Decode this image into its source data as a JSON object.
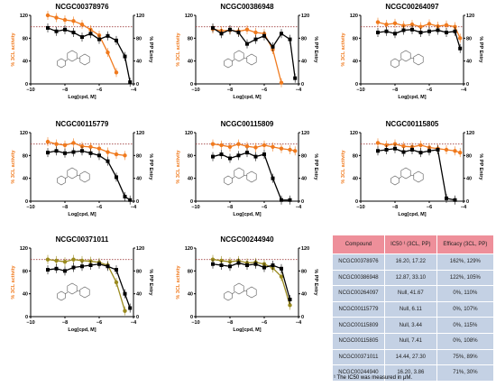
{
  "colors": {
    "scl": "#f07a1e",
    "pp": "#000000",
    "ref_line": "#a04040",
    "olive": "#9a8a1e"
  },
  "chart_data": [
    {
      "type": "line",
      "title": "NCGC00378976",
      "xlabel": "Log[cpd, M]",
      "ylabel_left": "% 3CL activity",
      "ylabel_right": "% PP Entry",
      "xlim": [
        -10,
        -4
      ],
      "ylim": [
        0,
        120
      ],
      "xticks": [
        -10,
        -8,
        -6,
        -4
      ],
      "yticks_left": [
        0,
        40,
        80,
        120
      ],
      "yticks_right": [
        0,
        40,
        80,
        120
      ],
      "reference_y": 100,
      "series": [
        {
          "color": "#f07a1e",
          "marker": "circle",
          "x": [
            -9.0,
            -8.5,
            -8.0,
            -7.5,
            -7.0,
            -6.5,
            -6.0,
            -5.5,
            -5.0
          ],
          "y": [
            120,
            116,
            112,
            110,
            104,
            95,
            85,
            55,
            20
          ]
        },
        {
          "color": "#000000",
          "marker": "square",
          "x": [
            -9.0,
            -8.5,
            -8.0,
            -7.5,
            -7.0,
            -6.5,
            -6.0,
            -5.5,
            -5.0,
            -4.5,
            -4.2
          ],
          "y": [
            98,
            92,
            95,
            90,
            82,
            88,
            78,
            84,
            76,
            48,
            3
          ]
        }
      ]
    },
    {
      "type": "line",
      "title": "NCGC00386948",
      "xlabel": "Log[cpd, M]",
      "ylabel_left": "% 3CL activity",
      "ylabel_right": "% PP Entry",
      "xlim": [
        -10,
        -4
      ],
      "ylim": [
        0,
        120
      ],
      "xticks": [
        -10,
        -8,
        -6,
        -4
      ],
      "yticks_left": [
        0,
        40,
        80,
        120
      ],
      "yticks_right": [
        0,
        40,
        80,
        120
      ],
      "reference_y": 100,
      "series": [
        {
          "color": "#f07a1e",
          "marker": "circle",
          "x": [
            -9.0,
            -8.5,
            -8.0,
            -7.5,
            -7.0,
            -6.5,
            -6.0,
            -5.5,
            -5.0
          ],
          "y": [
            96,
            93,
            94,
            92,
            95,
            90,
            88,
            60,
            2
          ]
        },
        {
          "color": "#000000",
          "marker": "square",
          "x": [
            -9.0,
            -8.5,
            -8.0,
            -7.5,
            -7.0,
            -6.5,
            -6.0,
            -5.5,
            -5.0,
            -4.5,
            -4.2
          ],
          "y": [
            98,
            88,
            95,
            90,
            70,
            78,
            84,
            65,
            88,
            78,
            10
          ]
        }
      ]
    },
    {
      "type": "line",
      "title": "NCGC00264097",
      "xlabel": "Log[cpd, M]",
      "ylabel_left": "% 3CL activity",
      "ylabel_right": "% PP Entry",
      "xlim": [
        -10,
        -4
      ],
      "ylim": [
        0,
        120
      ],
      "xticks": [
        -10,
        -8,
        -6,
        -4
      ],
      "yticks_left": [
        0,
        40,
        80,
        120
      ],
      "yticks_right": [
        0,
        40,
        80,
        120
      ],
      "reference_y": 100,
      "series": [
        {
          "color": "#f07a1e",
          "marker": "circle",
          "x": [
            -9.0,
            -8.5,
            -8.0,
            -7.5,
            -7.0,
            -6.5,
            -6.0,
            -5.5,
            -5.0,
            -4.5,
            -4.2
          ],
          "y": [
            108,
            104,
            106,
            102,
            104,
            100,
            105,
            101,
            103,
            100,
            80
          ]
        },
        {
          "color": "#000000",
          "marker": "square",
          "x": [
            -9.0,
            -8.5,
            -8.0,
            -7.5,
            -7.0,
            -6.5,
            -6.0,
            -5.5,
            -5.0,
            -4.5,
            -4.2
          ],
          "y": [
            90,
            92,
            88,
            94,
            95,
            90,
            92,
            94,
            90,
            92,
            62
          ]
        }
      ]
    },
    {
      "type": "line",
      "title": "NCGC00115779",
      "xlabel": "Log[cpd, M]",
      "ylabel_left": "% 3CL activity",
      "ylabel_right": "% PP Entry",
      "xlim": [
        -10,
        -4
      ],
      "ylim": [
        0,
        120
      ],
      "xticks": [
        -10,
        -8,
        -6,
        -4
      ],
      "yticks_left": [
        0,
        40,
        80,
        120
      ],
      "yticks_right": [
        0,
        40,
        80,
        120
      ],
      "reference_y": 100,
      "series": [
        {
          "color": "#f07a1e",
          "marker": "circle",
          "x": [
            -9.0,
            -8.5,
            -8.0,
            -7.5,
            -7.0,
            -6.5,
            -6.0,
            -5.5,
            -5.0,
            -4.5
          ],
          "y": [
            104,
            100,
            98,
            102,
            96,
            95,
            92,
            86,
            82,
            80
          ]
        },
        {
          "color": "#000000",
          "marker": "square",
          "x": [
            -9.0,
            -8.5,
            -8.0,
            -7.5,
            -7.0,
            -6.5,
            -6.0,
            -5.5,
            -5.0,
            -4.5,
            -4.2
          ],
          "y": [
            85,
            88,
            84,
            86,
            88,
            84,
            80,
            70,
            42,
            8,
            2
          ]
        }
      ]
    },
    {
      "type": "line",
      "title": "NCGC00115809",
      "xlabel": "Log[cpd, M]",
      "ylabel_left": "% 3CL activity",
      "ylabel_right": "% PP Entry",
      "xlim": [
        -10,
        -4
      ],
      "ylim": [
        0,
        120
      ],
      "xticks": [
        -10,
        -8,
        -6,
        -4
      ],
      "yticks_left": [
        0,
        40,
        80,
        120
      ],
      "yticks_right": [
        0,
        40,
        80,
        120
      ],
      "reference_y": 100,
      "series": [
        {
          "color": "#f07a1e",
          "marker": "circle",
          "x": [
            -9.0,
            -8.5,
            -8.0,
            -7.5,
            -7.0,
            -6.5,
            -6.0,
            -5.5,
            -5.0,
            -4.5,
            -4.2
          ],
          "y": [
            100,
            98,
            95,
            100,
            96,
            94,
            98,
            95,
            92,
            90,
            88
          ]
        },
        {
          "color": "#000000",
          "marker": "square",
          "x": [
            -9.0,
            -8.5,
            -8.0,
            -7.5,
            -7.0,
            -6.5,
            -6.0,
            -5.5,
            -5.0,
            -4.5
          ],
          "y": [
            78,
            82,
            75,
            80,
            85,
            78,
            82,
            40,
            2,
            2
          ]
        }
      ]
    },
    {
      "type": "line",
      "title": "NCGC00115805",
      "xlabel": "Log[cpd, M]",
      "ylabel_left": "% 3CL activity",
      "ylabel_right": "% PP Entry",
      "xlim": [
        -10,
        -4
      ],
      "ylim": [
        0,
        120
      ],
      "xticks": [
        -10,
        -8,
        -6,
        -4
      ],
      "yticks_left": [
        0,
        40,
        80,
        120
      ],
      "yticks_right": [
        0,
        40,
        80,
        120
      ],
      "reference_y": 100,
      "series": [
        {
          "color": "#f07a1e",
          "marker": "circle",
          "x": [
            -9.0,
            -8.5,
            -8.0,
            -7.5,
            -7.0,
            -6.5,
            -6.0,
            -5.5,
            -5.0,
            -4.5,
            -4.2
          ],
          "y": [
            102,
            98,
            100,
            96,
            95,
            98,
            94,
            92,
            90,
            88,
            85
          ]
        },
        {
          "color": "#000000",
          "marker": "square",
          "x": [
            -9.0,
            -8.5,
            -8.0,
            -7.5,
            -7.0,
            -6.5,
            -6.0,
            -5.5,
            -5.0,
            -4.5
          ],
          "y": [
            88,
            90,
            92,
            86,
            90,
            85,
            88,
            90,
            5,
            2
          ]
        }
      ]
    },
    {
      "type": "line",
      "title": "NCGC00371011",
      "xlabel": "Log[cpd, M]",
      "ylabel_left": "% 3CL activity",
      "ylabel_right": "% PP Entry",
      "xlim": [
        -10,
        -4
      ],
      "ylim": [
        0,
        120
      ],
      "xticks": [
        -10,
        -8,
        -6,
        -4
      ],
      "yticks_left": [
        0,
        40,
        80,
        120
      ],
      "yticks_right": [
        0,
        40,
        80,
        120
      ],
      "reference_y": 100,
      "series": [
        {
          "color": "#9a8a1e",
          "marker": "circle",
          "x": [
            -9.0,
            -8.5,
            -8.0,
            -7.5,
            -7.0,
            -6.5,
            -6.0,
            -5.5,
            -5.0,
            -4.5
          ],
          "y": [
            100,
            98,
            96,
            100,
            98,
            97,
            95,
            90,
            60,
            10
          ]
        },
        {
          "color": "#000000",
          "marker": "square",
          "x": [
            -9.0,
            -8.5,
            -8.0,
            -7.5,
            -7.0,
            -6.5,
            -6.0,
            -5.5,
            -5.0,
            -4.5,
            -4.2
          ],
          "y": [
            82,
            84,
            80,
            86,
            88,
            90,
            92,
            88,
            82,
            40,
            15
          ]
        }
      ]
    },
    {
      "type": "line",
      "title": "NCGC00244940",
      "xlabel": "Log[cpd, M]",
      "ylabel_left": "% 3CL activity",
      "ylabel_right": "% PP Entry",
      "xlim": [
        -10,
        -4
      ],
      "ylim": [
        0,
        120
      ],
      "xticks": [
        -10,
        -8,
        -6,
        -4
      ],
      "yticks_left": [
        0,
        40,
        80,
        120
      ],
      "yticks_right": [
        0,
        40,
        80,
        120
      ],
      "reference_y": 100,
      "series": [
        {
          "color": "#9a8a1e",
          "marker": "circle",
          "x": [
            -9.0,
            -8.5,
            -8.0,
            -7.5,
            -7.0,
            -6.5,
            -6.0,
            -5.5,
            -5.0,
            -4.5
          ],
          "y": [
            100,
            98,
            96,
            98,
            94,
            95,
            92,
            85,
            70,
            20
          ]
        },
        {
          "color": "#000000",
          "marker": "square",
          "x": [
            -9.0,
            -8.5,
            -8.0,
            -7.5,
            -7.0,
            -6.5,
            -6.0,
            -5.5,
            -5.0,
            -4.5
          ],
          "y": [
            92,
            90,
            88,
            94,
            90,
            92,
            86,
            90,
            84,
            30
          ]
        }
      ]
    }
  ],
  "table": {
    "headers": [
      "Compound",
      "IC50 ¹ (3CL, PP)",
      "Efficacy (3CL, PP)"
    ],
    "rows": [
      [
        "NCGC00378976",
        "16.20, 17.22",
        "162%, 129%"
      ],
      [
        "NCGC00386948",
        "12.87, 33.10",
        "122%, 105%"
      ],
      [
        "NCGC00264097",
        "Null, 41.67",
        "0%, 110%"
      ],
      [
        "NCGC00115779",
        "Null, 6.11",
        "0%, 107%"
      ],
      [
        "NCGC00115809",
        "Null, 3.44",
        "0%, 115%"
      ],
      [
        "NCGC00115805",
        "Null, 7.41",
        "0%, 108%"
      ],
      [
        "NCGC00371011",
        "14.44, 27.30",
        "75%, 89%"
      ],
      [
        "NCGC00244940",
        "16.20, 3.86",
        "71%, 30%"
      ]
    ],
    "footnote": "¹ The IC50 was measured in μM."
  }
}
